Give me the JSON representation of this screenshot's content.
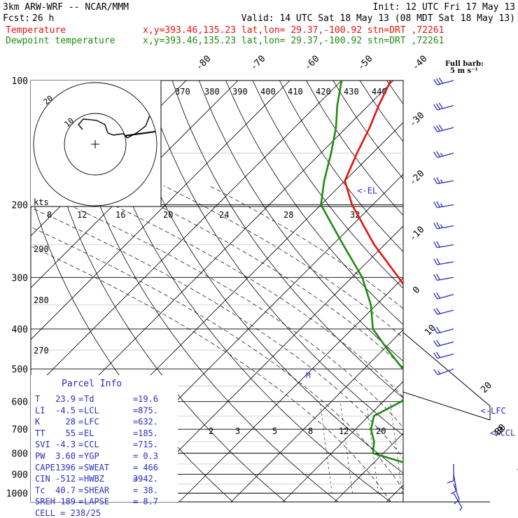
{
  "header": {
    "model": "3km ARW-WRF -- NCAR/MMM",
    "init": "Init: 12 UTC Fri 17 May 13",
    "fcst_label": "Fcst:",
    "fcst_value": "26 h",
    "valid": "Valid: 14 UTC Sat 18 May 13 (08 MDT Sat 18 May 13)",
    "temp_label": "Temperature",
    "temp_loc": "x,y=393.46,135.23   lat,lon= 29.37,-100.92  stn=DRT ,72261",
    "dew_label": "Dewpoint temperature",
    "dew_loc": "x,y=393.46,135.23   lat,lon= 29.37,-100.92  stn=DRT ,72261",
    "barb_title": "Full barb:",
    "barb_unit": "5 m s⁻¹"
  },
  "colors": {
    "temperature": "#e8120c",
    "dewpoint": "#1f8a12",
    "header_red": "#e8120c",
    "header_green": "#1f8a12",
    "wind": "#2c2cc0",
    "hodo": "#000000"
  },
  "chart_data": {
    "type": "line",
    "title": "Skew-T log-p sounding",
    "pressure_levels": [
      "100",
      "200",
      "300",
      "400",
      "500",
      "600",
      "700",
      "800",
      "900",
      "1000"
    ],
    "top_temp_labels": [
      "-80",
      "-70",
      "-60",
      "-50",
      "-40"
    ],
    "right_temp_labels": [
      "-30",
      "-20",
      "-10",
      "0",
      "10",
      "20",
      "30",
      "40"
    ],
    "theta_labels": [
      "370",
      "380",
      "390",
      "400",
      "410",
      "420",
      "430",
      "440",
      "290",
      "280",
      "270"
    ],
    "mixing_labels": [
      "2",
      "3",
      "5",
      "8",
      "12",
      "20"
    ],
    "kts_label": "kts",
    "hodo_speed_labels": [
      "8",
      "12",
      "16",
      "20",
      "24",
      "28",
      "32"
    ],
    "hodo_ring_labels": [
      "10",
      "20"
    ],
    "series": [
      {
        "name": "Temperature",
        "points": [
          [
            1000,
            23.9
          ],
          [
            975,
            22.0
          ],
          [
            950,
            23.0
          ],
          [
            925,
            25.5
          ],
          [
            900,
            27.5
          ],
          [
            875,
            27.0
          ],
          [
            850,
            24.8
          ],
          [
            800,
            20.5
          ],
          [
            750,
            17.2
          ],
          [
            700,
            13.8
          ],
          [
            650,
            10.0
          ],
          [
            600,
            6.5
          ],
          [
            550,
            2.4
          ],
          [
            500,
            -2.8
          ],
          [
            450,
            -8.0
          ],
          [
            400,
            -14.5
          ],
          [
            350,
            -22.0
          ],
          [
            300,
            -31.0
          ],
          [
            250,
            -42.0
          ],
          [
            200,
            -54.0
          ],
          [
            175,
            -60.0
          ],
          [
            150,
            -63.0
          ],
          [
            130,
            -65.5
          ],
          [
            115,
            -68.0
          ],
          [
            100,
            -70.5
          ]
        ]
      },
      {
        "name": "Dewpoint temperature",
        "points": [
          [
            1000,
            19.6
          ],
          [
            975,
            19.0
          ],
          [
            950,
            18.0
          ],
          [
            925,
            16.8
          ],
          [
            900,
            15.0
          ],
          [
            850,
            7.0
          ],
          [
            800,
            -2.0
          ],
          [
            750,
            -4.0
          ],
          [
            700,
            -7.0
          ],
          [
            650,
            -9.0
          ],
          [
            600,
            -6.5
          ],
          [
            550,
            -6.5
          ],
          [
            500,
            -12.5
          ],
          [
            450,
            -19.0
          ],
          [
            400,
            -26.0
          ],
          [
            350,
            -31.0
          ],
          [
            300,
            -38.0
          ],
          [
            250,
            -48.0
          ],
          [
            200,
            -60.0
          ],
          [
            175,
            -64.0
          ],
          [
            150,
            -68.0
          ],
          [
            130,
            -72.0
          ],
          [
            115,
            -76.0
          ],
          [
            100,
            -80.0
          ]
        ]
      }
    ],
    "levels_marked": [
      {
        "label": "EL",
        "p": 185
      },
      {
        "label": "LFC",
        "p": 632
      },
      {
        "label": "CCL",
        "p": 715
      },
      {
        "label": "LCL",
        "p": 875
      }
    ],
    "parcel_info": {
      "title": "Parcel Info",
      "rows": [
        [
          "T",
          "23.9",
          "Td",
          "19.6"
        ],
        [
          "LI",
          "-4.5",
          "LCL",
          "875."
        ],
        [
          "K",
          "28",
          "LFC",
          "632."
        ],
        [
          "TT",
          "55",
          "EL",
          "185."
        ],
        [
          "SVI",
          "-4.3",
          "CCL",
          "715."
        ],
        [
          "PW",
          "3.60",
          "YGP",
          "0.3"
        ],
        [
          "CAPE",
          "1396",
          "SWEAT",
          "466"
        ],
        [
          "CIN",
          "-512",
          "HWBZ",
          "3942."
        ],
        [
          "Tc",
          "40.7",
          "SHEAR",
          "38."
        ],
        [
          "SREH",
          "189",
          "LAPSE",
          "8.7"
        ]
      ],
      "cell": "CELL = 238/25"
    },
    "winds": [
      {
        "p": 100,
        "dir": 255,
        "spd": 30
      },
      {
        "p": 115,
        "dir": 255,
        "spd": 30
      },
      {
        "p": 130,
        "dir": 255,
        "spd": 30
      },
      {
        "p": 150,
        "dir": 255,
        "spd": 25
      },
      {
        "p": 175,
        "dir": 260,
        "spd": 25
      },
      {
        "p": 200,
        "dir": 260,
        "spd": 25
      },
      {
        "p": 225,
        "dir": 260,
        "spd": 25
      },
      {
        "p": 250,
        "dir": 260,
        "spd": 20
      },
      {
        "p": 275,
        "dir": 260,
        "spd": 20
      },
      {
        "p": 300,
        "dir": 260,
        "spd": 20
      },
      {
        "p": 330,
        "dir": 255,
        "spd": 20
      },
      {
        "p": 360,
        "dir": 255,
        "spd": 20
      },
      {
        "p": 400,
        "dir": 255,
        "spd": 20
      },
      {
        "p": 430,
        "dir": 255,
        "spd": 20
      },
      {
        "p": 460,
        "dir": 255,
        "spd": 20
      },
      {
        "p": 500,
        "dir": 250,
        "spd": 15
      },
      {
        "p": 850,
        "dir": 180,
        "spd": 10
      },
      {
        "p": 900,
        "dir": 170,
        "spd": 10
      },
      {
        "p": 950,
        "dir": 160,
        "spd": 10
      },
      {
        "p": 1000,
        "dir": 150,
        "spd": 5
      }
    ]
  }
}
